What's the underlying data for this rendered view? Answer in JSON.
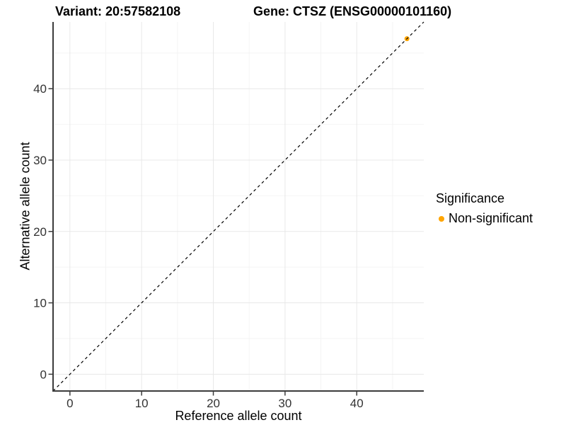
{
  "titles": {
    "variant": "Variant: 20:57582108",
    "gene": "Gene: CTSZ (ENSG00000101160)"
  },
  "axes": {
    "x_label": "Reference allele count",
    "y_label": "Alternative allele count"
  },
  "legend": {
    "title": "Significance",
    "entries": [
      {
        "label": "Non-significant",
        "color": "#FFA500"
      }
    ]
  },
  "colors": {
    "background": "#ffffff",
    "point": "#FFA500",
    "axis_line": "#3c3c3c",
    "grid_major": "#e8e8e8",
    "grid_minor": "#f4f4f4",
    "tick_label": "#333333",
    "reference_line": "#000000"
  },
  "chart_data": {
    "type": "scatter",
    "title": "Variant: 20:57582108    Gene: CTSZ (ENSG00000101160)",
    "xlabel": "Reference allele count",
    "ylabel": "Alternative allele count",
    "xlim": [
      -2.35,
      49.35
    ],
    "ylim": [
      -2.35,
      49.35
    ],
    "xticks": [
      0,
      10,
      20,
      30,
      40
    ],
    "yticks": [
      0,
      10,
      20,
      30,
      40
    ],
    "x_minor": [
      5,
      15,
      25,
      35,
      45
    ],
    "y_minor": [
      5,
      15,
      25,
      35,
      45
    ],
    "grid": true,
    "legend_position": "right",
    "series": [
      {
        "name": "Non-significant",
        "color": "#FFA500",
        "points": [
          [
            47,
            47
          ]
        ]
      }
    ],
    "reference_line": {
      "slope": 1,
      "intercept": 0,
      "style": "dashed",
      "color": "#000000"
    }
  }
}
